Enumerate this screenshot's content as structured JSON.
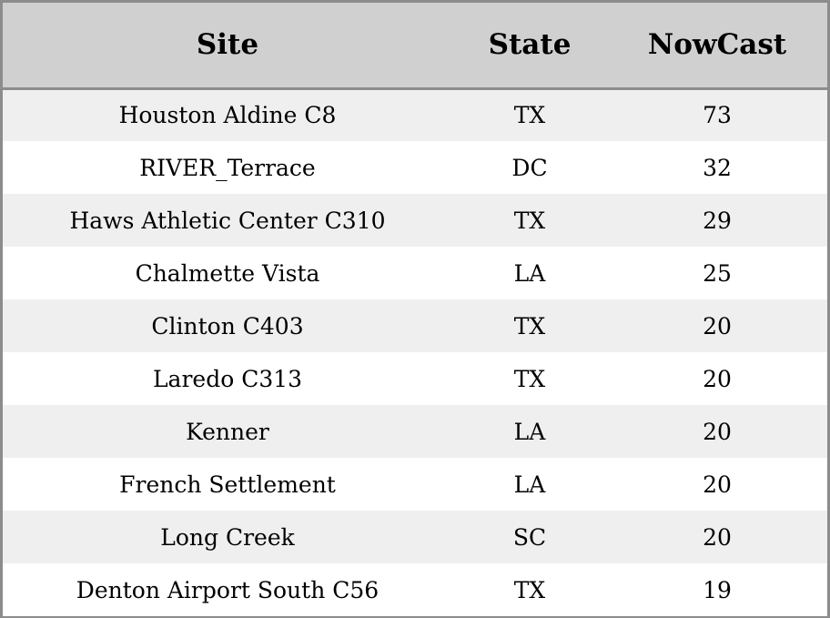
{
  "table": {
    "headers": {
      "site": "Site",
      "state": "State",
      "nowcast": "NowCast"
    },
    "rows": [
      {
        "site": "Houston Aldine C8",
        "state": "TX",
        "nowcast": "73"
      },
      {
        "site": "RIVER_Terrace",
        "state": "DC",
        "nowcast": "32"
      },
      {
        "site": "Haws Athletic Center C310",
        "state": "TX",
        "nowcast": "29"
      },
      {
        "site": "Chalmette Vista",
        "state": "LA",
        "nowcast": "25"
      },
      {
        "site": "Clinton C403",
        "state": "TX",
        "nowcast": "20"
      },
      {
        "site": "Laredo C313",
        "state": "TX",
        "nowcast": "20"
      },
      {
        "site": "Kenner",
        "state": "LA",
        "nowcast": "20"
      },
      {
        "site": "French Settlement",
        "state": "LA",
        "nowcast": "20"
      },
      {
        "site": "Long Creek",
        "state": "SC",
        "nowcast": "20"
      },
      {
        "site": "Denton Airport South C56",
        "state": "TX",
        "nowcast": "19"
      }
    ]
  },
  "colors": {
    "header_bg": "#d0d0d0",
    "row_odd_bg": "#efefef",
    "row_even_bg": "#ffffff",
    "border": "#8c8c8c",
    "text": "#000000"
  }
}
